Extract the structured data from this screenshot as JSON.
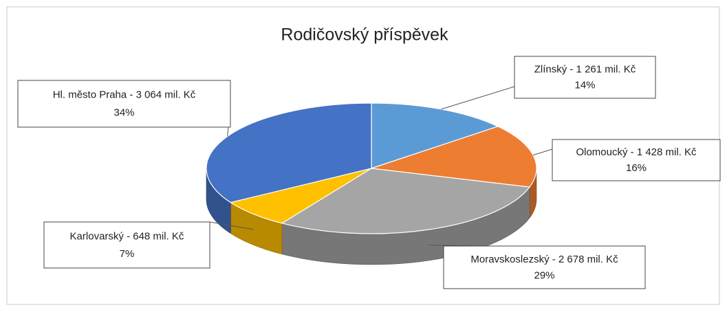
{
  "chart_data": {
    "type": "pie3d",
    "title": "Rodičovský příspěvek",
    "values": [
      1261,
      1428,
      2678,
      648,
      3064
    ],
    "value_labels": [
      "Zlínský - 1 261 mil. Kč",
      "Olomoucký - 1 428 mil. Kč",
      "Moravskoslezský - 2 678 mil. Kč",
      "Karlovarský - 648 mil. Kč",
      "Hl. město Praha - 3 064 mil. Kč"
    ],
    "percents": [
      {
        "value": 14,
        "label": "14%"
      },
      {
        "value": 16,
        "label": "16%"
      },
      {
        "value": 29,
        "label": "29%"
      },
      {
        "value": 7,
        "label": "7%"
      },
      {
        "value": 34,
        "label": "34%"
      }
    ],
    "colors": [
      "#5b9bd5",
      "#ed7d31",
      "#a5a5a5",
      "#ffc000",
      "#4472c4"
    ]
  }
}
